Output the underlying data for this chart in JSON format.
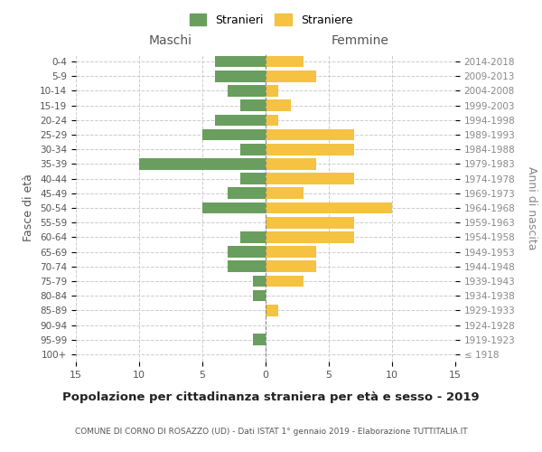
{
  "age_groups": [
    "100+",
    "95-99",
    "90-94",
    "85-89",
    "80-84",
    "75-79",
    "70-74",
    "65-69",
    "60-64",
    "55-59",
    "50-54",
    "45-49",
    "40-44",
    "35-39",
    "30-34",
    "25-29",
    "20-24",
    "15-19",
    "10-14",
    "5-9",
    "0-4"
  ],
  "birth_years": [
    "≤ 1918",
    "1919-1923",
    "1924-1928",
    "1929-1933",
    "1934-1938",
    "1939-1943",
    "1944-1948",
    "1949-1953",
    "1954-1958",
    "1959-1963",
    "1964-1968",
    "1969-1973",
    "1974-1978",
    "1979-1983",
    "1984-1988",
    "1989-1993",
    "1994-1998",
    "1999-2003",
    "2004-2008",
    "2009-2013",
    "2014-2018"
  ],
  "males": [
    0,
    1,
    0,
    0,
    1,
    1,
    3,
    3,
    2,
    0,
    5,
    3,
    2,
    10,
    2,
    5,
    4,
    2,
    3,
    4,
    4
  ],
  "females": [
    0,
    0,
    0,
    1,
    0,
    3,
    4,
    4,
    7,
    7,
    10,
    3,
    7,
    4,
    7,
    7,
    1,
    2,
    1,
    4,
    3
  ],
  "male_color": "#6a9e5f",
  "female_color": "#f5c242",
  "background_color": "#ffffff",
  "grid_color": "#cccccc",
  "title": "Popolazione per cittadinanza straniera per età e sesso - 2019",
  "subtitle": "COMUNE DI CORNO DI ROSAZZO (UD) - Dati ISTAT 1° gennaio 2019 - Elaborazione TUTTITALIA.IT",
  "ylabel_left": "Fasce di età",
  "ylabel_right": "Anni di nascita",
  "xlabel_left": "Maschi",
  "xlabel_right": "Femmine",
  "legend_male": "Stranieri",
  "legend_female": "Straniere",
  "xlim": 15,
  "bar_height": 0.78
}
